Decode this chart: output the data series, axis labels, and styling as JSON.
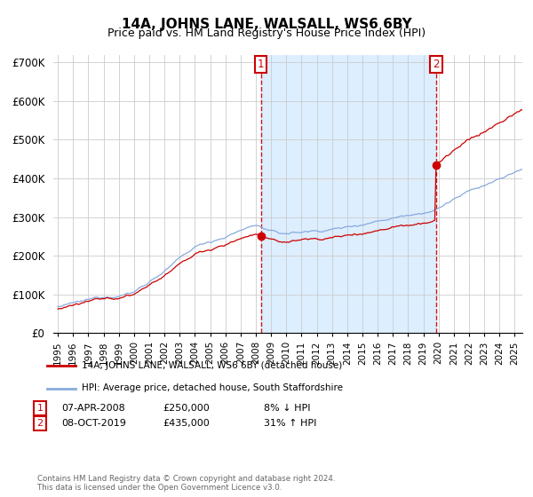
{
  "title": "14A, JOHNS LANE, WALSALL, WS6 6BY",
  "subtitle": "Price paid vs. HM Land Registry's House Price Index (HPI)",
  "legend_line1": "14A, JOHNS LANE, WALSALL, WS6 6BY (detached house)",
  "legend_line2": "HPI: Average price, detached house, South Staffordshire",
  "transaction1_date": "07-APR-2008",
  "transaction1_price": 250000,
  "transaction1_pct": "8% ↓ HPI",
  "transaction2_date": "08-OCT-2019",
  "transaction2_price": 435000,
  "transaction2_pct": "31% ↑ HPI",
  "footer": "Contains HM Land Registry data © Crown copyright and database right 2024.\nThis data is licensed under the Open Government Licence v3.0.",
  "hpi_color": "#88aadd",
  "price_color": "#cc0000",
  "dashed_color": "#cc0000",
  "shade_color": "#ddeeff",
  "ylim": [
    0,
    720000
  ],
  "yticks": [
    0,
    100000,
    200000,
    300000,
    400000,
    500000,
    600000,
    700000
  ],
  "ytick_labels": [
    "£0",
    "£100K",
    "£200K",
    "£300K",
    "£400K",
    "£500K",
    "£600K",
    "£700K"
  ],
  "t1_year": 2008.27,
  "t2_year": 2019.77,
  "xmin": 1994.7,
  "xmax": 2025.5
}
